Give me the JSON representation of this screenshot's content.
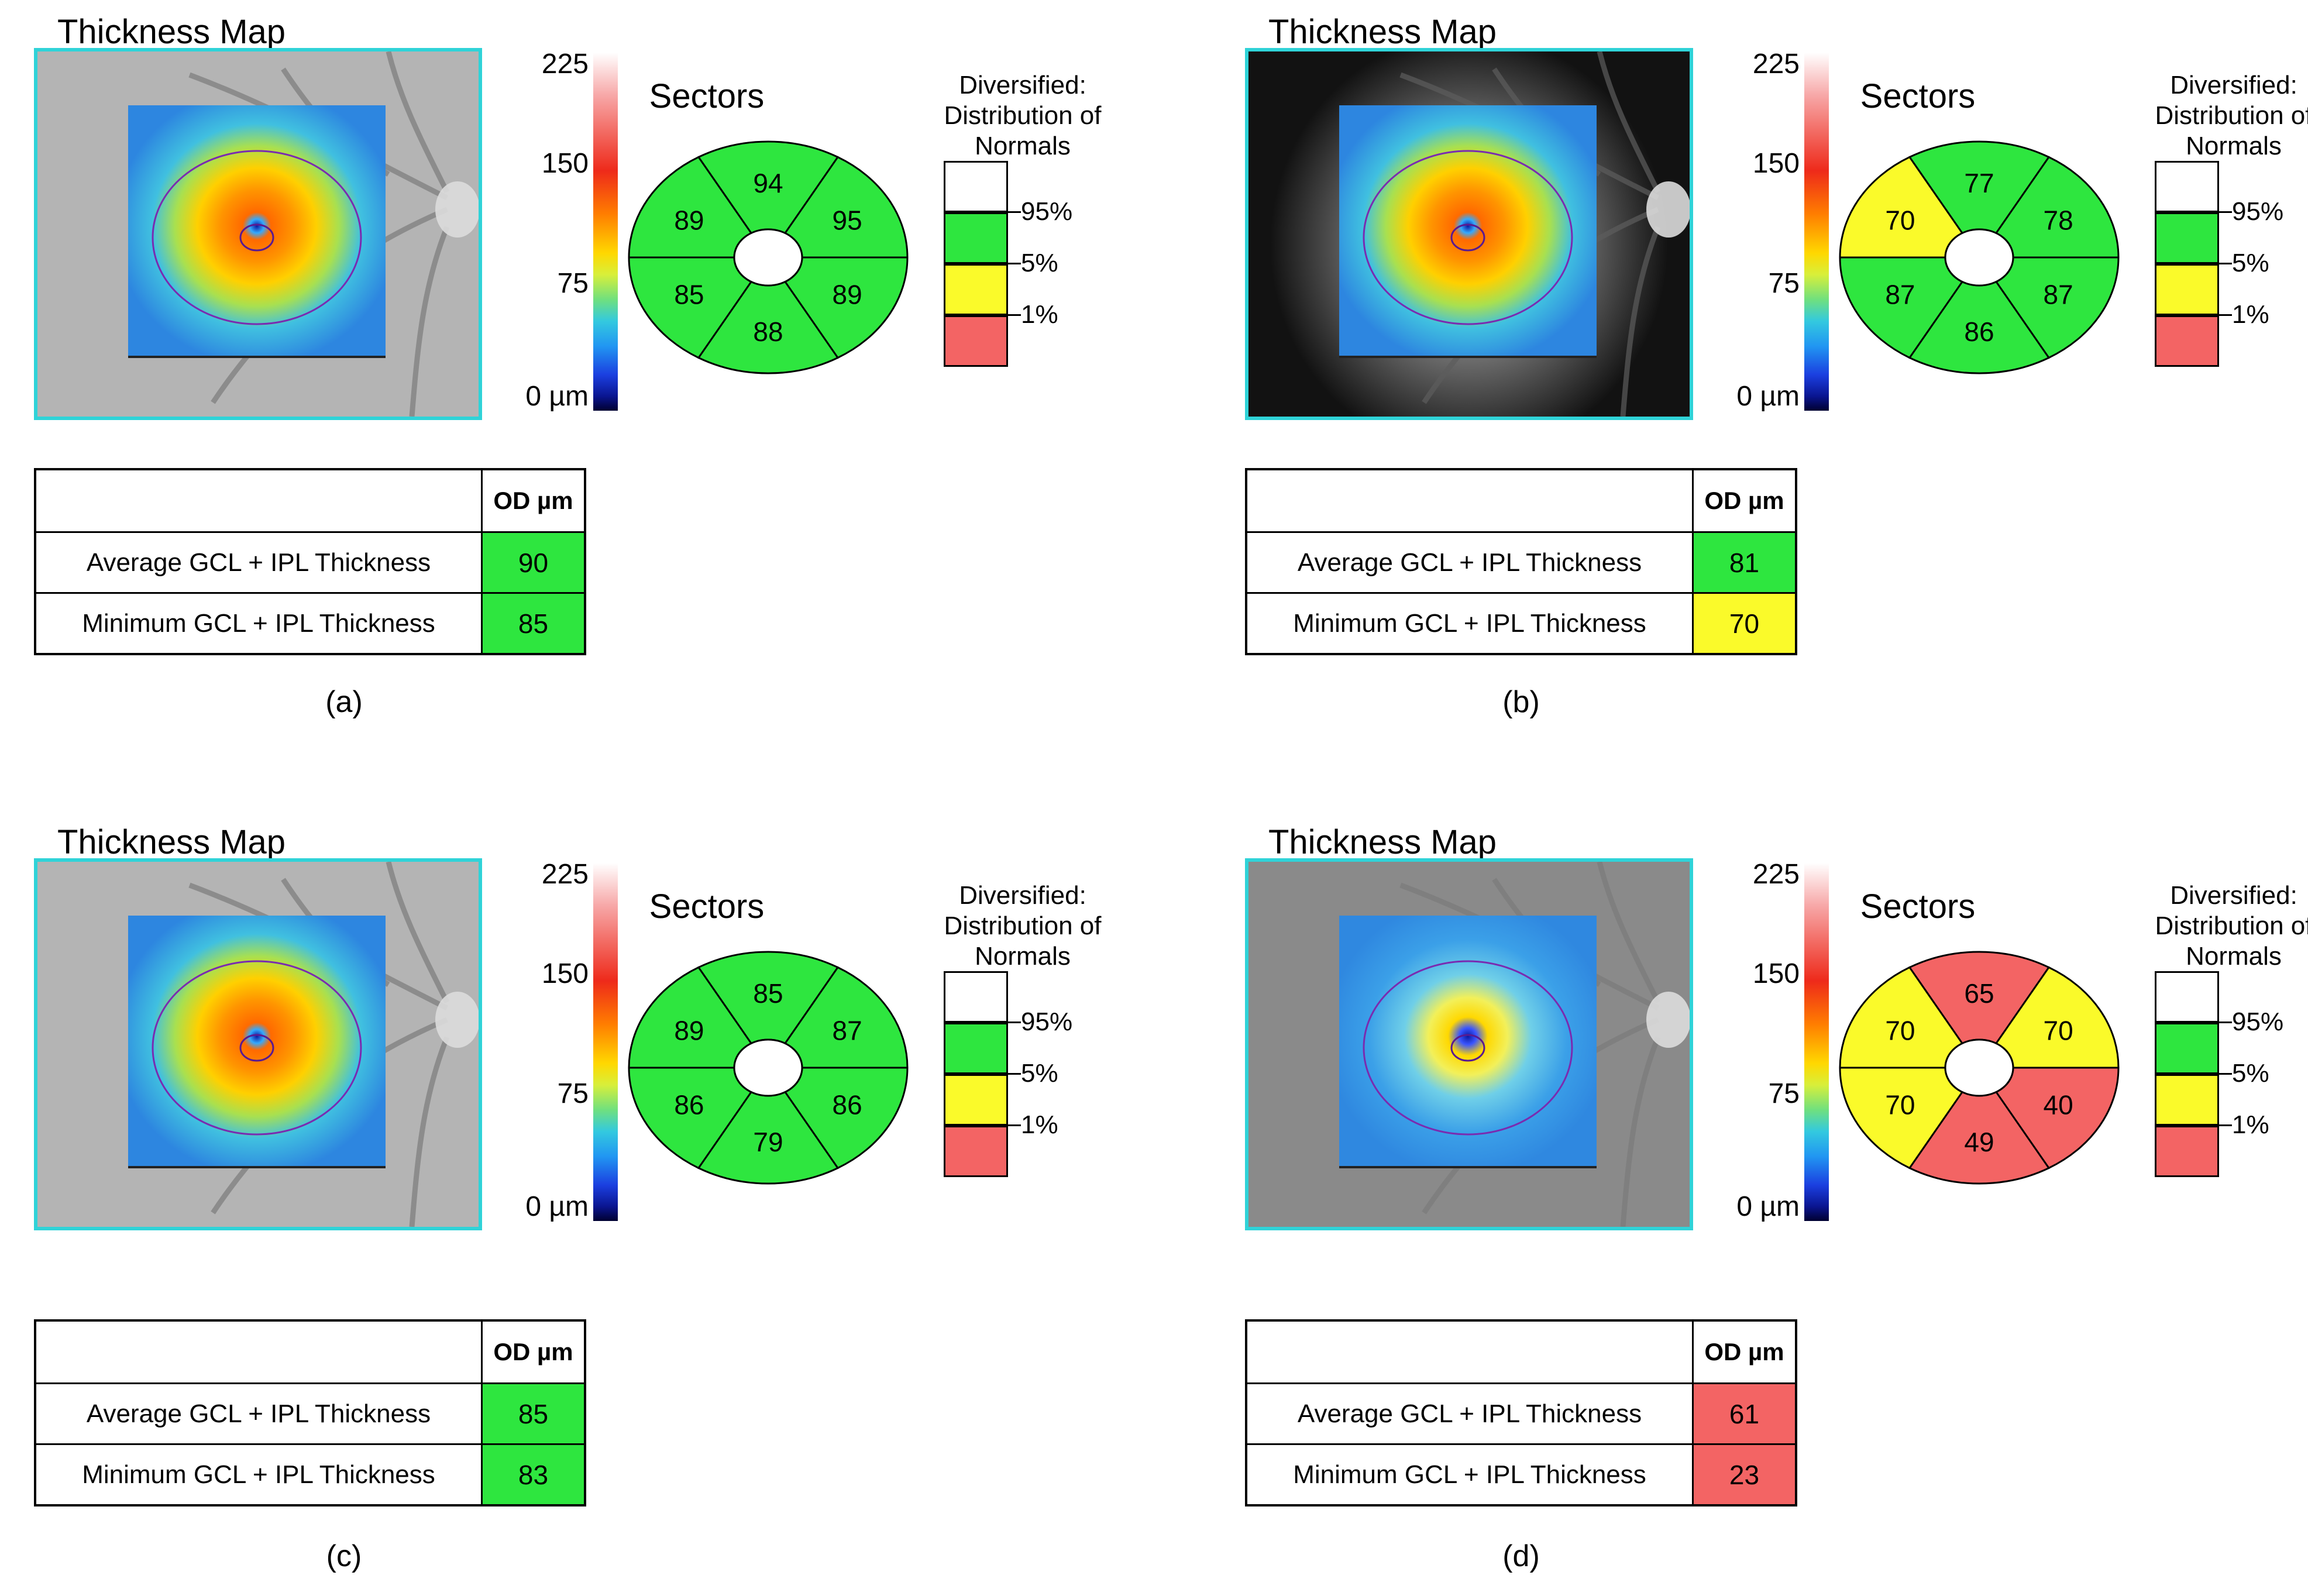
{
  "colors": {
    "normal": "#2ee63f",
    "borderline": "#fafa2a",
    "abnormal": "#f36464",
    "above": "#ffffff",
    "frame": "#2fd3d8"
  },
  "panels": [
    {
      "id": "a",
      "title": "Thickness Map",
      "scale": {
        "max": "225",
        "high": "150",
        "mid": "75",
        "zero": "0 µm"
      },
      "sectors_title": "Sectors",
      "sectors": [
        {
          "pos": "superior",
          "value": "94",
          "status": "normal"
        },
        {
          "pos": "superonasal",
          "value": "95",
          "status": "normal"
        },
        {
          "pos": "inferonasal",
          "value": "89",
          "status": "normal"
        },
        {
          "pos": "inferior",
          "value": "88",
          "status": "normal"
        },
        {
          "pos": "inferotemporal",
          "value": "85",
          "status": "normal"
        },
        {
          "pos": "superotemporal",
          "value": "89",
          "status": "normal"
        }
      ],
      "legend_title": "Diversified: Distribution of Normals",
      "legend": [
        "95%",
        "5%",
        "1%"
      ],
      "table": {
        "header": "OD µm",
        "rows": [
          {
            "label": "Average GCL + IPL Thickness",
            "value": "90",
            "status": "normal"
          },
          {
            "label": "Minimum GCL + IPL Thickness",
            "value": "85",
            "status": "normal"
          }
        ]
      },
      "caption": "(a)",
      "fundus": "light"
    },
    {
      "id": "b",
      "title": "Thickness Map",
      "scale": {
        "max": "225",
        "high": "150",
        "mid": "75",
        "zero": "0 µm"
      },
      "sectors_title": "Sectors",
      "sectors": [
        {
          "pos": "superior",
          "value": "77",
          "status": "normal"
        },
        {
          "pos": "superonasal",
          "value": "78",
          "status": "normal"
        },
        {
          "pos": "inferonasal",
          "value": "87",
          "status": "normal"
        },
        {
          "pos": "inferior",
          "value": "86",
          "status": "normal"
        },
        {
          "pos": "inferotemporal",
          "value": "87",
          "status": "normal"
        },
        {
          "pos": "superotemporal",
          "value": "70",
          "status": "borderline"
        }
      ],
      "legend_title": "Diversified: Distribution of Normals",
      "legend": [
        "95%",
        "5%",
        "1%"
      ],
      "table": {
        "header": "OD µm",
        "rows": [
          {
            "label": "Average GCL + IPL Thickness",
            "value": "81",
            "status": "normal"
          },
          {
            "label": "Minimum GCL + IPL Thickness",
            "value": "70",
            "status": "borderline"
          }
        ]
      },
      "caption": "(b)",
      "fundus": "dark"
    },
    {
      "id": "c",
      "title": "Thickness Map",
      "scale": {
        "max": "225",
        "high": "150",
        "mid": "75",
        "zero": "0 µm"
      },
      "sectors_title": "Sectors",
      "sectors": [
        {
          "pos": "superior",
          "value": "85",
          "status": "normal"
        },
        {
          "pos": "superonasal",
          "value": "87",
          "status": "normal"
        },
        {
          "pos": "inferonasal",
          "value": "86",
          "status": "normal"
        },
        {
          "pos": "inferior",
          "value": "79",
          "status": "normal"
        },
        {
          "pos": "inferotemporal",
          "value": "86",
          "status": "normal"
        },
        {
          "pos": "superotemporal",
          "value": "89",
          "status": "normal"
        }
      ],
      "legend_title": "Diversified: Distribution of Normals",
      "legend": [
        "95%",
        "5%",
        "1%"
      ],
      "table": {
        "header": "OD µm",
        "rows": [
          {
            "label": "Average GCL + IPL Thickness",
            "value": "85",
            "status": "normal"
          },
          {
            "label": "Minimum GCL + IPL Thickness",
            "value": "83",
            "status": "normal"
          }
        ]
      },
      "caption": "(c)",
      "fundus": "light"
    },
    {
      "id": "d",
      "title": "Thickness Map",
      "scale": {
        "max": "225",
        "high": "150",
        "mid": "75",
        "zero": "0 µm"
      },
      "sectors_title": "Sectors",
      "sectors": [
        {
          "pos": "superior",
          "value": "65",
          "status": "abnormal"
        },
        {
          "pos": "superonasal",
          "value": "70",
          "status": "borderline"
        },
        {
          "pos": "inferonasal",
          "value": "40",
          "status": "abnormal"
        },
        {
          "pos": "inferior",
          "value": "49",
          "status": "abnormal"
        },
        {
          "pos": "inferotemporal",
          "value": "70",
          "status": "borderline"
        },
        {
          "pos": "superotemporal",
          "value": "70",
          "status": "borderline"
        }
      ],
      "legend_title": "Diversified: Distribution of Normals",
      "legend": [
        "95%",
        "5%",
        "1%"
      ],
      "table": {
        "header": "OD µm",
        "rows": [
          {
            "label": "Average GCL + IPL Thickness",
            "value": "61",
            "status": "abnormal"
          },
          {
            "label": "Minimum GCL + IPL Thickness",
            "value": "23",
            "status": "abnormal"
          }
        ]
      },
      "caption": "(d)",
      "fundus": "medium"
    }
  ]
}
